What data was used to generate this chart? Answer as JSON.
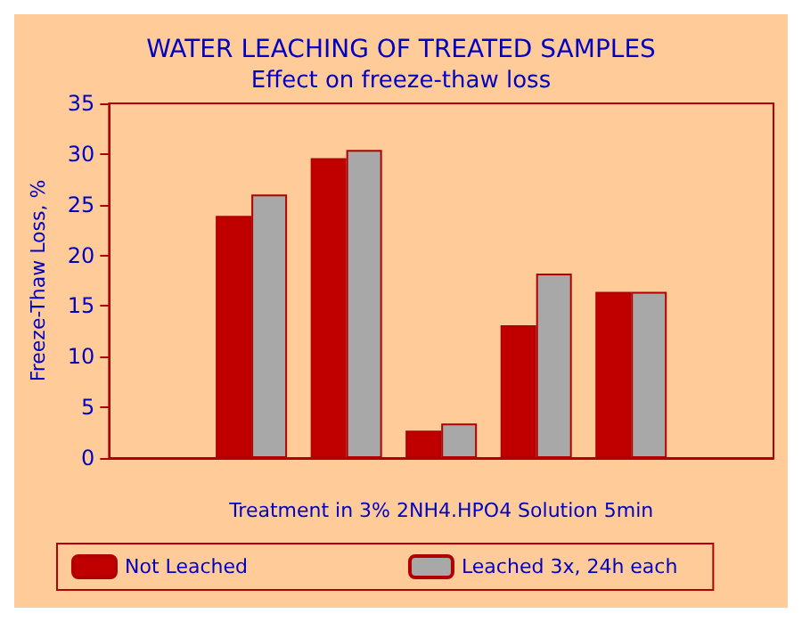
{
  "chart_data": {
    "type": "bar",
    "title": "WATER LEACHING OF TREATED SAMPLES",
    "subtitle": "Effect on freeze-thaw loss",
    "xlabel": "Treatment in 3% 2NH4.HPO4 Solution 5min",
    "ylabel": "Freeze-Thaw Loss, %",
    "categories": [
      null,
      null,
      null,
      null,
      null,
      null,
      null
    ],
    "series": [
      {
        "name": "Not Leached",
        "color": "#c00000",
        "values": [
          null,
          23.9,
          29.6,
          2.7,
          13.1,
          16.4,
          null
        ]
      },
      {
        "name": "Leached 3x, 24h each",
        "color": "#a8a8a8",
        "values": [
          null,
          26,
          30.4,
          3.4,
          18.2,
          16.4,
          null
        ]
      }
    ],
    "ylim": [
      0,
      35
    ],
    "yticks": [
      0,
      5,
      10,
      15,
      20,
      25,
      30,
      35
    ],
    "grid": false,
    "legend": "bottom"
  }
}
